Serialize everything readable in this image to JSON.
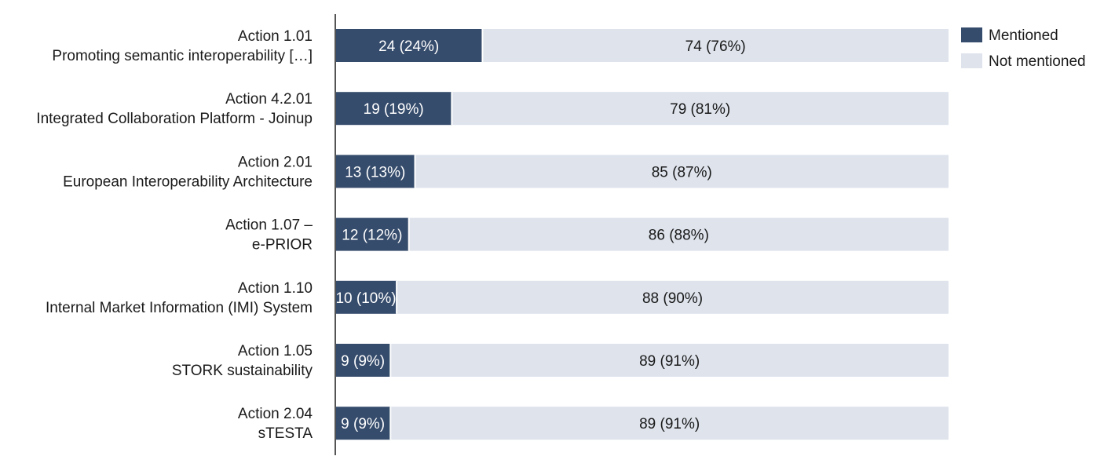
{
  "chart_data": {
    "type": "bar",
    "orientation": "horizontal",
    "stacked": true,
    "categories": [
      {
        "line1": "Action 1.01",
        "line2": "Promoting semantic interoperability […]"
      },
      {
        "line1": "Action 4.2.01",
        "line2": "Integrated Collaboration Platform - Joinup"
      },
      {
        "line1": "Action 2.01",
        "line2": "European Interoperability Architecture"
      },
      {
        "line1": "Action 1.07 –",
        "line2": "e-PRIOR"
      },
      {
        "line1": "Action 1.10",
        "line2": "Internal Market Information (IMI) System"
      },
      {
        "line1": "Action 1.05",
        "line2": "STORK sustainability"
      },
      {
        "line1": "Action 2.04",
        "line2": "sTESTA"
      }
    ],
    "series": [
      {
        "name": "Mentioned",
        "color": "#364c6c",
        "text_color": "#ffffff",
        "values": [
          24,
          19,
          13,
          12,
          10,
          9,
          9
        ],
        "labels": [
          "24 (24%)",
          "19 (19%)",
          "13 (13%)",
          "12 (12%)",
          "10 (10%)",
          "9 (9%)",
          "9 (9%)"
        ]
      },
      {
        "name": "Not mentioned",
        "color": "#dee3ec",
        "text_color": "#1a1a1a",
        "values": [
          74,
          79,
          85,
          86,
          88,
          89,
          89
        ],
        "labels": [
          "74 (76%)",
          "79 (81%)",
          "85 (87%)",
          "86 (88%)",
          "88 (90%)",
          "89 (91%)",
          "89 (91%)"
        ]
      }
    ],
    "value_unit": "percent",
    "percentages": [
      [
        24,
        76
      ],
      [
        19,
        81
      ],
      [
        13,
        87
      ],
      [
        12,
        88
      ],
      [
        10,
        90
      ],
      [
        9,
        91
      ],
      [
        9,
        91
      ]
    ],
    "xlim": [
      0,
      100
    ],
    "grid": false,
    "legend": {
      "position": "top-right"
    },
    "axis_color": "#555555",
    "title": "",
    "xlabel": "",
    "ylabel": ""
  }
}
